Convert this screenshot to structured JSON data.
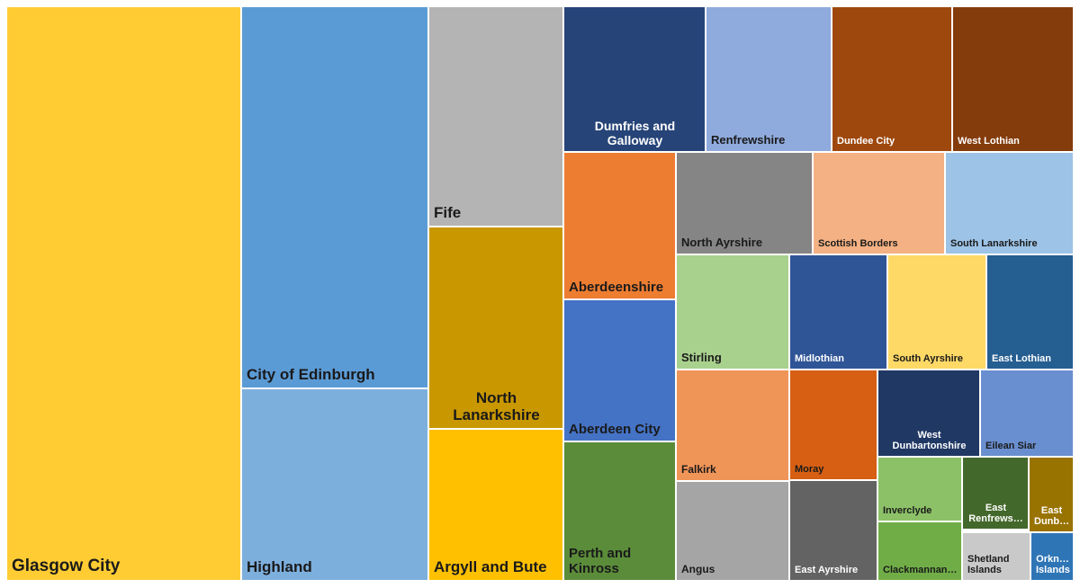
{
  "chart_data": {
    "type": "treemap",
    "labels": [
      {
        "name": "Glasgow City",
        "color": "#FFCC33",
        "text": "#1a1a1a"
      },
      {
        "name": "City of Edinburgh",
        "color": "#5B9BD5",
        "text": "#1a1a1a"
      },
      {
        "name": "Highland",
        "color": "#7DAFDD",
        "text": "#1a1a1a"
      },
      {
        "name": "Fife",
        "color": "#B4B4B4",
        "text": "#1a1a1a"
      },
      {
        "name": "North Lanarkshire",
        "color": "#C99700",
        "text": "#1a1a1a"
      },
      {
        "name": "Argyll and Bute",
        "color": "#FFC000",
        "text": "#1a1a1a"
      },
      {
        "name": "Dumfries and Galloway",
        "color": "#264478",
        "text": "#ffffff"
      },
      {
        "name": "Renfrewshire",
        "color": "#8FAADC",
        "text": "#1a1a1a"
      },
      {
        "name": "Dundee City",
        "color": "#9E480E",
        "text": "#ffffff"
      },
      {
        "name": "West Lothian",
        "color": "#843C0C",
        "text": "#ffffff"
      },
      {
        "name": "Aberdeenshire",
        "color": "#ED7D31",
        "text": "#1a1a1a"
      },
      {
        "name": "North Ayrshire",
        "color": "#858585",
        "text": "#1a1a1a"
      },
      {
        "name": "Scottish Borders",
        "color": "#F4B183",
        "text": "#1a1a1a"
      },
      {
        "name": "South Lanarkshire",
        "color": "#9DC3E6",
        "text": "#1a1a1a"
      },
      {
        "name": "Aberdeen City",
        "color": "#4472C4",
        "text": "#1a1a1a"
      },
      {
        "name": "Stirling",
        "color": "#A9D18E",
        "text": "#1a1a1a"
      },
      {
        "name": "Midlothian",
        "color": "#2F5597",
        "text": "#ffffff"
      },
      {
        "name": "South Ayrshire",
        "color": "#FFD966",
        "text": "#1a1a1a"
      },
      {
        "name": "East Lothian",
        "color": "#255E91",
        "text": "#ffffff"
      },
      {
        "name": "Perth and Kinross",
        "color": "#5B8C3A",
        "text": "#1a1a1a"
      },
      {
        "name": "Falkirk",
        "color": "#F09558",
        "text": "#1a1a1a"
      },
      {
        "name": "Moray",
        "color": "#D65F14",
        "text": "#1a1a1a"
      },
      {
        "name": "West Dunbartonshire",
        "color": "#203864",
        "text": "#ffffff"
      },
      {
        "name": "Eilean Siar",
        "color": "#6A8FD0",
        "text": "#1a1a1a"
      },
      {
        "name": "Angus",
        "color": "#A5A5A5",
        "text": "#1a1a1a"
      },
      {
        "name": "East Ayrshire",
        "color": "#636363",
        "text": "#ffffff"
      },
      {
        "name": "Inverclyde",
        "color": "#8CC168",
        "text": "#1a1a1a"
      },
      {
        "name": "East Renfrews…",
        "color": "#43682B",
        "text": "#ffffff"
      },
      {
        "name": "East Dunb…",
        "color": "#997300",
        "text": "#ffffff"
      },
      {
        "name": "Clackmannan…",
        "color": "#70AD47",
        "text": "#1a1a1a"
      },
      {
        "name": "Shetland Islands",
        "color": "#C9C9C9",
        "text": "#1a1a1a"
      },
      {
        "name": "Orkn… Islands",
        "color": "#2E75B6",
        "text": "#ffffff"
      }
    ]
  }
}
